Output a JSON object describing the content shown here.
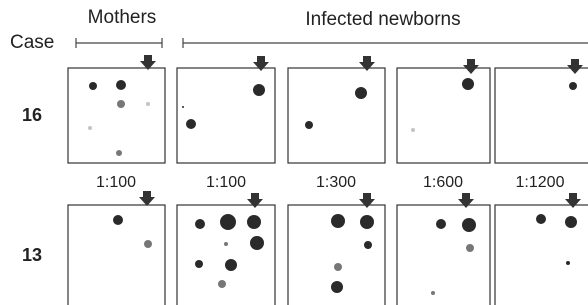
{
  "header": {
    "case_label": "Case",
    "mothers": "Mothers",
    "newborns": "Infected newborns"
  },
  "rows": [
    {
      "case": "16"
    },
    {
      "case": "13"
    }
  ],
  "dilutions": [
    "1:100",
    "1:100",
    "1:300",
    "1:600",
    "1:1200"
  ]
}
